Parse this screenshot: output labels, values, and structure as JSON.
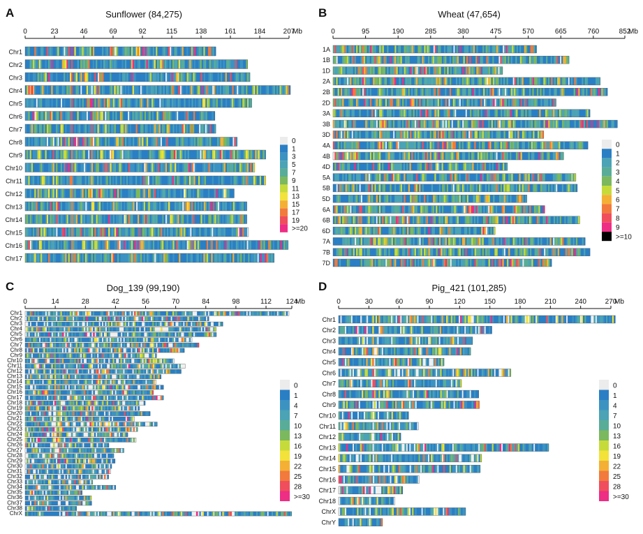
{
  "figure_panels": [
    "A",
    "B",
    "C",
    "D"
  ],
  "colors": {
    "gap": "#f0f0f0",
    "palette_long": [
      "#ececec",
      "#2a7fc4",
      "#3c93c2",
      "#4ba3b5",
      "#59ad98",
      "#7cb85e",
      "#c6db3a",
      "#f2e23a",
      "#f4b034",
      "#f27a3c",
      "#f04e5c",
      "#ee2d85"
    ],
    "palette_short": [
      "#ececec",
      "#2a7fc4",
      "#4ba3b5",
      "#59ad98",
      "#7cb85e",
      "#c6db3a",
      "#f4b034",
      "#f27a3c",
      "#f04e5c",
      "#ee2d85"
    ]
  },
  "chart_data": [
    {
      "panel": "A",
      "type": "chromosome-density",
      "title": "Sunflower (84,275)",
      "unit": "Mb",
      "axis_max": 207,
      "ticks": [
        0,
        23,
        46,
        69,
        92,
        115,
        138,
        161,
        184,
        207
      ],
      "tick_labels": [
        "0",
        "23",
        "46",
        "69",
        "92",
        "115",
        "138",
        "161",
        "184",
        "207"
      ],
      "chromosomes": [
        {
          "name": "Chr1",
          "length": 149.5
        },
        {
          "name": "Chr2",
          "length": 174.5
        },
        {
          "name": "Chr3",
          "length": 176.3
        },
        {
          "name": "Chr4",
          "length": 208.0
        },
        {
          "name": "Chr5",
          "length": 177.7
        },
        {
          "name": "Chr6",
          "length": 148.8
        },
        {
          "name": "Chr7",
          "length": 149.5
        },
        {
          "name": "Chr8",
          "length": 166.3
        },
        {
          "name": "Chr9",
          "length": 188.7
        },
        {
          "name": "Chr10",
          "length": 180.1
        },
        {
          "name": "Chr11",
          "length": 188.7
        },
        {
          "name": "Chr12",
          "length": 163.9
        },
        {
          "name": "Chr13",
          "length": 173.9
        },
        {
          "name": "Chr14",
          "length": 173.9
        },
        {
          "name": "Chr15",
          "length": 175.2
        },
        {
          "name": "Chr16",
          "length": 206.3
        },
        {
          "name": "Chr17",
          "length": 195.3
        }
      ],
      "legend": [
        "0",
        "1",
        "3",
        "5",
        "7",
        "9",
        "11",
        "13",
        "15",
        "17",
        "19",
        ">=20"
      ]
    },
    {
      "panel": "B",
      "type": "chromosome-density",
      "title": "Wheat (47,654)",
      "unit": "Mb",
      "axis_max": 852,
      "ticks": [
        0,
        95,
        190,
        285,
        380,
        475,
        570,
        665,
        760,
        852
      ],
      "tick_labels": [
        "0",
        "95",
        "190",
        "285",
        "380",
        "475",
        "570",
        "665",
        "760",
        "852"
      ],
      "chromosomes": [
        {
          "name": "1A",
          "length": 594
        },
        {
          "name": "1B",
          "length": 689
        },
        {
          "name": "1D",
          "length": 495
        },
        {
          "name": "2A",
          "length": 780
        },
        {
          "name": "2B",
          "length": 801
        },
        {
          "name": "2D",
          "length": 651
        },
        {
          "name": "3A",
          "length": 750
        },
        {
          "name": "3B",
          "length": 830
        },
        {
          "name": "3D",
          "length": 615
        },
        {
          "name": "4A",
          "length": 744
        },
        {
          "name": "4B",
          "length": 673
        },
        {
          "name": "4D",
          "length": 509
        },
        {
          "name": "5A",
          "length": 709
        },
        {
          "name": "5B",
          "length": 713
        },
        {
          "name": "5D",
          "length": 566
        },
        {
          "name": "6A",
          "length": 618
        },
        {
          "name": "6B",
          "length": 720
        },
        {
          "name": "6D",
          "length": 473
        },
        {
          "name": "7A",
          "length": 736
        },
        {
          "name": "7B",
          "length": 750
        },
        {
          "name": "7D",
          "length": 638
        }
      ],
      "legend": [
        "0",
        "1",
        "2",
        "3",
        "4",
        "5",
        "6",
        "7",
        "8",
        "9",
        ">=10"
      ]
    },
    {
      "panel": "C",
      "type": "chromosome-density",
      "title": "Dog_139 (99,190)",
      "unit": "Mb",
      "axis_max": 124,
      "ticks": [
        0,
        14,
        28,
        42,
        56,
        70,
        84,
        98,
        112,
        124
      ],
      "tick_labels": [
        "0",
        "14",
        "28",
        "42",
        "56",
        "70",
        "84",
        "98",
        "112",
        "124"
      ],
      "chromosomes": [
        {
          "name": "Chr1",
          "length": 122.7
        },
        {
          "name": "Chr2",
          "length": 85.4
        },
        {
          "name": "Chr3",
          "length": 91.9
        },
        {
          "name": "Chr4",
          "length": 88.8
        },
        {
          "name": "Chr5",
          "length": 88.9
        },
        {
          "name": "Chr6",
          "length": 77.6
        },
        {
          "name": "Chr7",
          "length": 80.8
        },
        {
          "name": "Chr8",
          "length": 74.0
        },
        {
          "name": "Chr9",
          "length": 61.1
        },
        {
          "name": "Chr10",
          "length": 69.3
        },
        {
          "name": "Chr11",
          "length": 74.4
        },
        {
          "name": "Chr12",
          "length": 72.5
        },
        {
          "name": "Chr13",
          "length": 63.2
        },
        {
          "name": "Chr14",
          "length": 60.9
        },
        {
          "name": "Chr15",
          "length": 64.3
        },
        {
          "name": "Chr16",
          "length": 59.6
        },
        {
          "name": "Chr17",
          "length": 64.3
        },
        {
          "name": "Chr18",
          "length": 55.8
        },
        {
          "name": "Chr19",
          "length": 53.1
        },
        {
          "name": "Chr20",
          "length": 58.1
        },
        {
          "name": "Chr21",
          "length": 50.9
        },
        {
          "name": "Chr22",
          "length": 61.4
        },
        {
          "name": "Chr23",
          "length": 52.3
        },
        {
          "name": "Chr24",
          "length": 47.7
        },
        {
          "name": "Chr25",
          "length": 51.6
        },
        {
          "name": "Chr26",
          "length": 38.9
        },
        {
          "name": "Chr27",
          "length": 45.9
        },
        {
          "name": "Chr28",
          "length": 41.2
        },
        {
          "name": "Chr29",
          "length": 41.8
        },
        {
          "name": "Chr30",
          "length": 40.2
        },
        {
          "name": "Chr31",
          "length": 39.8
        },
        {
          "name": "Chr32",
          "length": 38.8
        },
        {
          "name": "Chr33",
          "length": 31.4
        },
        {
          "name": "Chr34",
          "length": 42.1
        },
        {
          "name": "Chr35",
          "length": 26.5
        },
        {
          "name": "Chr36",
          "length": 30.8
        },
        {
          "name": "Chr37",
          "length": 30.9
        },
        {
          "name": "Chr38",
          "length": 23.9
        },
        {
          "name": "ChrX",
          "length": 123.9
        }
      ],
      "legend": [
        "0",
        "1",
        "4",
        "7",
        "10",
        "13",
        "16",
        "19",
        "22",
        "25",
        "28",
        ">=30"
      ]
    },
    {
      "panel": "D",
      "type": "chromosome-density",
      "title": "Pig_421 (101,285)",
      "unit": "Mb",
      "axis_max": 270,
      "ticks": [
        0,
        30,
        60,
        90,
        120,
        150,
        180,
        210,
        240,
        270
      ],
      "tick_labels": [
        "0",
        "30",
        "60",
        "90",
        "120",
        "150",
        "180",
        "210",
        "240",
        "270"
      ],
      "chromosomes": [
        {
          "name": "Chr1",
          "length": 274.3
        },
        {
          "name": "Chr2",
          "length": 151.9
        },
        {
          "name": "Chr3",
          "length": 132.8
        },
        {
          "name": "Chr4",
          "length": 130.9
        },
        {
          "name": "Chr5",
          "length": 104.5
        },
        {
          "name": "Chr6",
          "length": 170.8
        },
        {
          "name": "Chr7",
          "length": 121.8
        },
        {
          "name": "Chr8",
          "length": 138.9
        },
        {
          "name": "Chr9",
          "length": 139.5
        },
        {
          "name": "Chr10",
          "length": 69.3
        },
        {
          "name": "Chr11",
          "length": 79.1
        },
        {
          "name": "Chr12",
          "length": 61.6
        },
        {
          "name": "Chr13",
          "length": 208.3
        },
        {
          "name": "Chr14",
          "length": 141.8
        },
        {
          "name": "Chr15",
          "length": 140.4
        },
        {
          "name": "Chr16",
          "length": 79.9
        },
        {
          "name": "Chr17",
          "length": 63.5
        },
        {
          "name": "Chr18",
          "length": 55.9
        },
        {
          "name": "ChrX",
          "length": 125.9
        },
        {
          "name": "ChrY",
          "length": 43.5
        }
      ],
      "legend": [
        "0",
        "1",
        "4",
        "7",
        "10",
        "13",
        "16",
        "19",
        "22",
        "25",
        "28",
        ">=30"
      ]
    }
  ]
}
